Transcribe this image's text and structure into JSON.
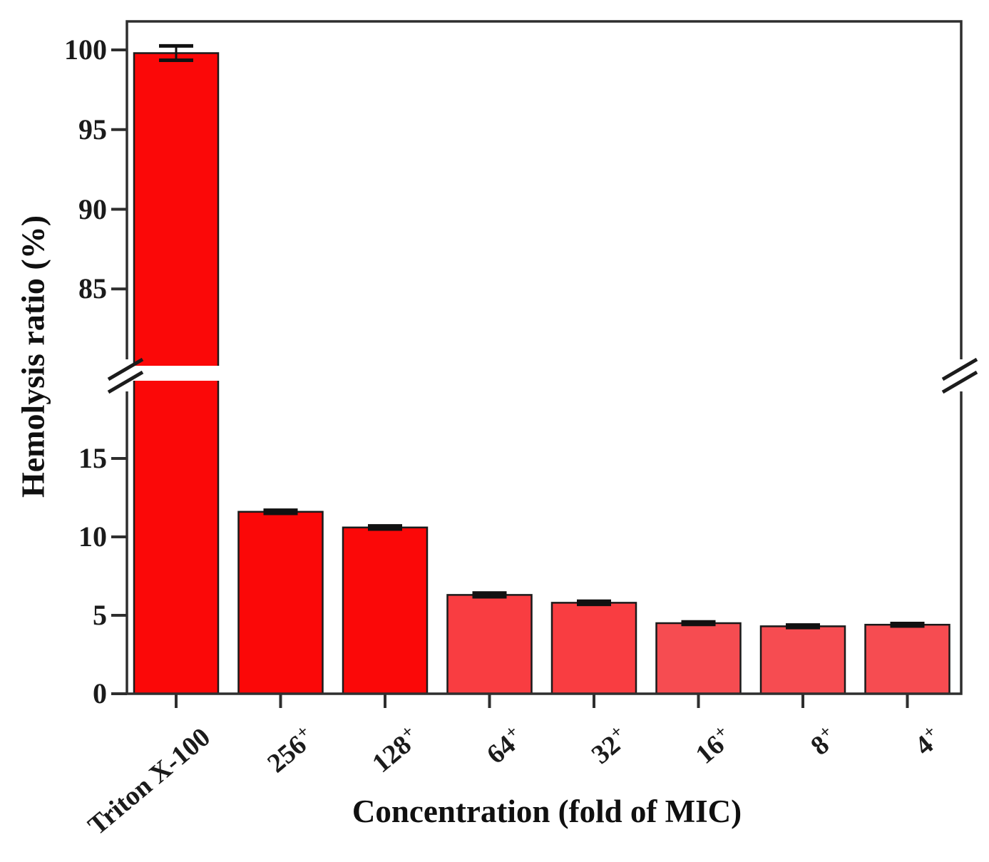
{
  "chart_data": {
    "type": "bar",
    "title": "",
    "xlabel": "Concentration (fold of MIC)",
    "ylabel": "Hemolysis ratio (%)",
    "categories": [
      {
        "base": "Triton X-100",
        "sup": ""
      },
      {
        "base": "256",
        "sup": "+"
      },
      {
        "base": "128",
        "sup": "+"
      },
      {
        "base": "64",
        "sup": "+"
      },
      {
        "base": "32",
        "sup": "+"
      },
      {
        "base": "16",
        "sup": "+"
      },
      {
        "base": "8",
        "sup": "+"
      },
      {
        "base": "4",
        "sup": "+"
      }
    ],
    "values": [
      99.8,
      11.6,
      10.6,
      6.3,
      5.8,
      4.5,
      4.3,
      4.4
    ],
    "errors": [
      0.45,
      0.1,
      0.1,
      0.12,
      0.1,
      0.08,
      0.08,
      0.08
    ],
    "bar_colors": [
      "#fb0808",
      "#fb0808",
      "#fb0808",
      "#f93d41",
      "#f93d41",
      "#f64c51",
      "#f64c51",
      "#f64c51"
    ],
    "bar_edge_color": "#1a1a1a",
    "error_color": "#111111",
    "axis_color": "#2e2e2e",
    "y_axis": {
      "broken": true,
      "lower_ticks": [
        0,
        5,
        10,
        15
      ],
      "upper_ticks": [
        85,
        90,
        95,
        100
      ],
      "ylim_lower": [
        0,
        19.6
      ],
      "ylim_upper": [
        80.6,
        101.9
      ]
    },
    "grid": false,
    "legend": null
  }
}
